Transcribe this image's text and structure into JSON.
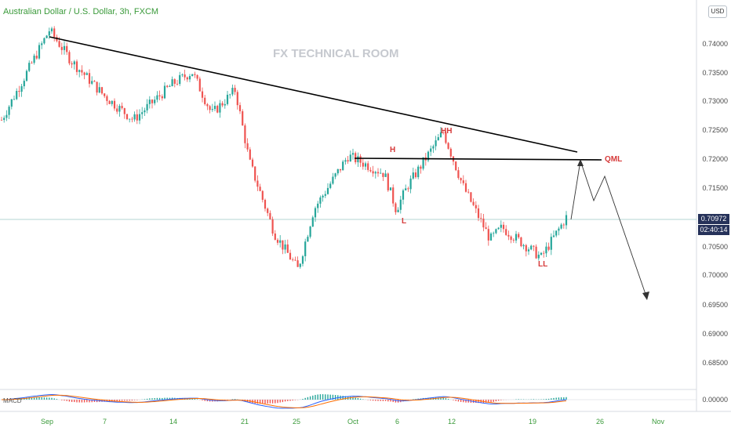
{
  "header": {
    "title": "Australian Dollar / U.S. Dollar, 3h, FXCM",
    "currency": "USD",
    "watermark": "FX TECHNICAL ROOM"
  },
  "price_axis": {
    "ticks": [
      "0.74000",
      "0.73500",
      "0.73000",
      "0.72500",
      "0.72000",
      "0.71500",
      "0.70500",
      "0.70000",
      "0.69500",
      "0.69000",
      "0.68500"
    ],
    "current_price": "0.70972",
    "countdown": "02:40:14",
    "macd_tick": "0.00000"
  },
  "time_axis": {
    "ticks": [
      "Sep",
      "7",
      "14",
      "21",
      "25",
      "Oct",
      "6",
      "12",
      "19",
      "26",
      "Nov"
    ]
  },
  "annotations": {
    "h": "H",
    "hh": "HH",
    "l": "L",
    "ll": "LL",
    "qml": "QML"
  },
  "indicator": {
    "name": "MACD"
  },
  "colors": {
    "up": "#26a69a",
    "down": "#ef5350",
    "annotation": "#d63a3a",
    "trendline": "#000000",
    "macd_line": "#2962ff",
    "signal_line": "#ff6d00",
    "badge": "#26325a"
  },
  "chart_data": {
    "type": "line",
    "title": "Australian Dollar / U.S. Dollar, 3h, FXCM",
    "ylim": [
      0.684,
      0.742
    ],
    "x": [
      "Sep 1",
      "Sep 2",
      "Sep 4",
      "Sep 7",
      "Sep 10",
      "Sep 14",
      "Sep 16",
      "Sep 18",
      "Sep 21",
      "Sep 22",
      "Sep 24",
      "Sep 25",
      "Sep 28",
      "Oct 1",
      "Oct 5",
      "Oct 6",
      "Oct 8",
      "Oct 12",
      "Oct 14",
      "Oct 16",
      "Oct 19",
      "Oct 20",
      "Oct 22"
    ],
    "series": [
      {
        "values": [
          0.726,
          0.741,
          0.736,
          0.73,
          0.726,
          0.732,
          0.734,
          0.727,
          0.731,
          0.719,
          0.707,
          0.701,
          0.711,
          0.72,
          0.717,
          0.711,
          0.715,
          0.724,
          0.715,
          0.706,
          0.708,
          0.703,
          0.7097
        ]
      }
    ]
  }
}
